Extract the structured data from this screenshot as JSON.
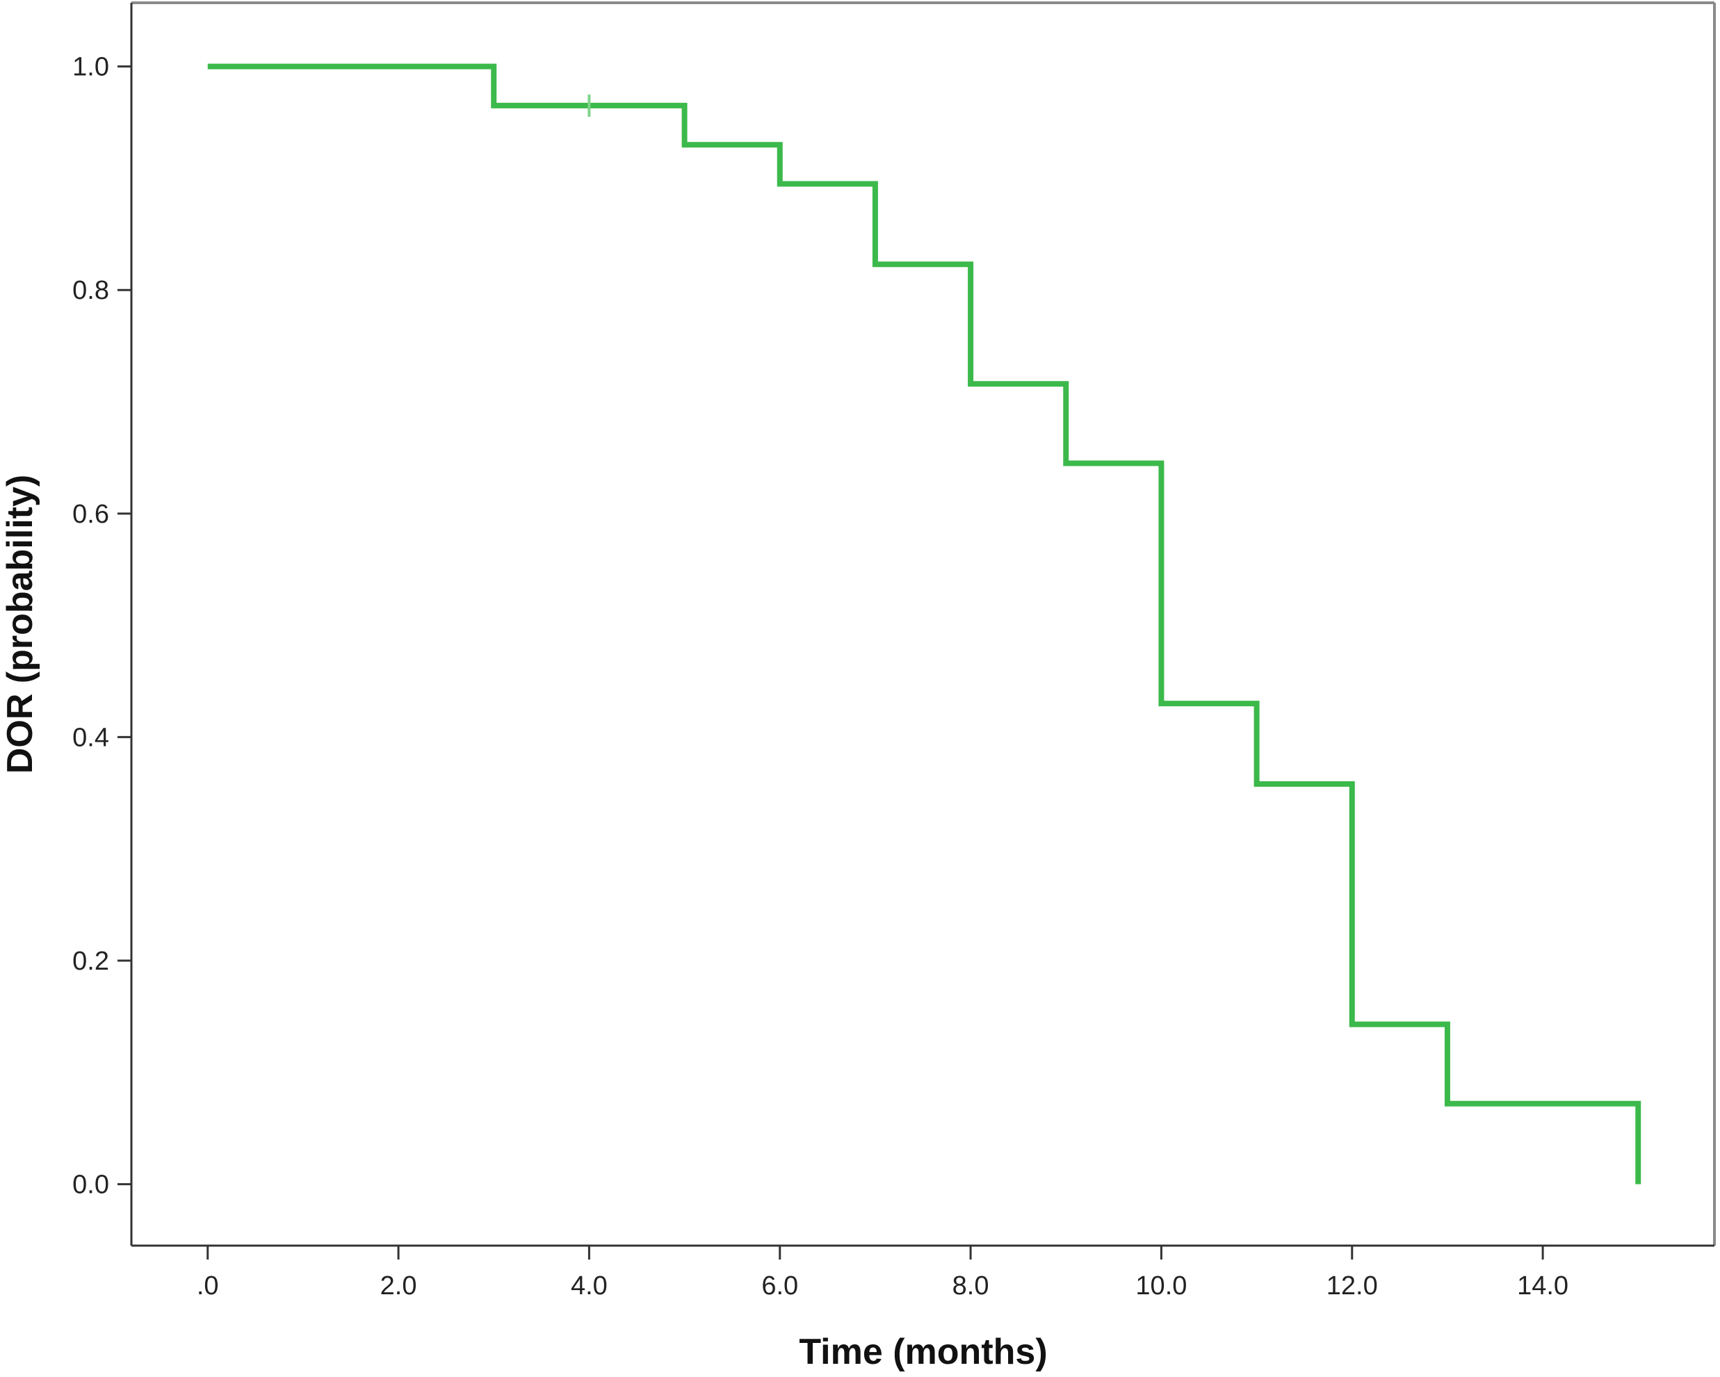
{
  "chart_data": {
    "type": "line",
    "subtype": "kaplan-meier-step",
    "title": "",
    "xlabel": "Time (months)",
    "ylabel": "DOR (probability)",
    "xlim": [
      -0.8,
      15.8
    ],
    "ylim": [
      -0.055,
      1.057
    ],
    "x_ticks": [
      0,
      2,
      4,
      6,
      8,
      10,
      12,
      14
    ],
    "x_tick_labels": [
      ".0",
      "2.0",
      "4.0",
      "6.0",
      "8.0",
      "10.0",
      "12.0",
      "14.0"
    ],
    "y_ticks": [
      0,
      0.2,
      0.4,
      0.6,
      0.8,
      1.0
    ],
    "y_tick_labels": [
      "0.0",
      "0.2",
      "0.4",
      "0.6",
      "0.8",
      "1.0"
    ],
    "grid": false,
    "legend": "none",
    "series": [
      {
        "color": "#3cb94b",
        "steps": [
          {
            "x": 0,
            "y": 1.0
          },
          {
            "x": 3,
            "y": 0.965
          },
          {
            "x": 5,
            "y": 0.93
          },
          {
            "x": 6,
            "y": 0.895
          },
          {
            "x": 7,
            "y": 0.823
          },
          {
            "x": 8,
            "y": 0.716
          },
          {
            "x": 9,
            "y": 0.645
          },
          {
            "x": 10,
            "y": 0.43
          },
          {
            "x": 11,
            "y": 0.358
          },
          {
            "x": 12,
            "y": 0.143
          },
          {
            "x": 13,
            "y": 0.072
          },
          {
            "x": 15,
            "y": 0.0
          }
        ],
        "censored": [
          {
            "x": 4,
            "y": 0.965
          }
        ]
      }
    ]
  }
}
